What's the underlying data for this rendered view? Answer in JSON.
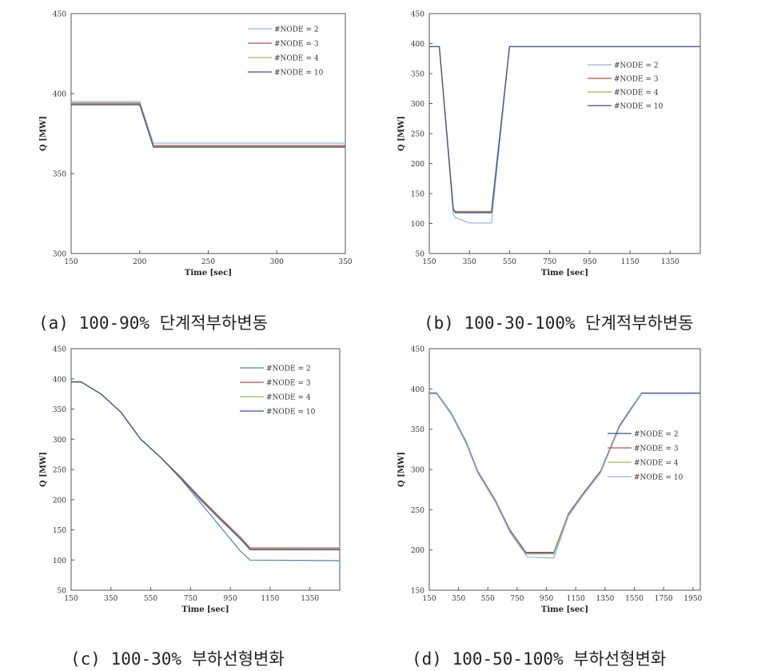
{
  "chart_data": [
    {
      "id": "a",
      "type": "line",
      "caption": "(a) 100-90% 단계적부하변동",
      "xlabel": "Time [sec]",
      "ylabel": "Q [MW]",
      "xlim": [
        150,
        350
      ],
      "ylim": [
        300,
        450
      ],
      "xticks": [
        "150",
        "200",
        "250",
        "300",
        "350"
      ],
      "yticks": [
        "300",
        "350",
        "400",
        "450"
      ],
      "legend_position": "top-right",
      "series": [
        {
          "name": "#NODE = 2",
          "color": "#8fb4e3",
          "x": [
            150,
            200,
            210,
            350
          ],
          "y": [
            395,
            395,
            369,
            369
          ]
        },
        {
          "name": "#NODE = 3",
          "color": "#c0504d",
          "x": [
            150,
            200,
            210,
            350
          ],
          "y": [
            394,
            394,
            367.5,
            367.5
          ]
        },
        {
          "name": "#NODE = 4",
          "color": "#9bbb59",
          "x": [
            150,
            200,
            210,
            350
          ],
          "y": [
            393.5,
            393.5,
            367,
            367
          ]
        },
        {
          "name": "#NODE = 10",
          "color": "#3d4f8f",
          "x": [
            150,
            200,
            210,
            350
          ],
          "y": [
            393,
            393,
            366.5,
            366.5
          ]
        }
      ]
    },
    {
      "id": "b",
      "type": "line",
      "caption": "(b) 100-30-100% 단계적부하변동",
      "xlabel": "Time [sec]",
      "ylabel": "Q [MW]",
      "xlim": [
        150,
        1500
      ],
      "ylim": [
        50,
        450
      ],
      "xticks": [
        "150",
        "350",
        "550",
        "750",
        "950",
        "1150",
        "1350"
      ],
      "yticks": [
        "50",
        "100",
        "150",
        "200",
        "250",
        "300",
        "350",
        "400",
        "450"
      ],
      "legend_position": "right",
      "series": [
        {
          "name": "#NODE = 2",
          "color": "#8fb4e3",
          "x": [
            150,
            200,
            270,
            280,
            350,
            460,
            550,
            1500
          ],
          "y": [
            395,
            395,
            115,
            110,
            101,
            101,
            395,
            395
          ]
        },
        {
          "name": "#NODE = 3",
          "color": "#c0504d",
          "x": [
            150,
            200,
            270,
            280,
            460,
            550,
            1500
          ],
          "y": [
            395,
            395,
            125,
            120,
            120,
            395,
            395
          ]
        },
        {
          "name": "#NODE = 4",
          "color": "#9bbb59",
          "x": [
            150,
            200,
            270,
            280,
            460,
            550,
            1500
          ],
          "y": [
            395,
            395,
            124,
            119,
            119,
            395,
            395
          ]
        },
        {
          "name": "#NODE = 10",
          "color": "#3d4f8f",
          "x": [
            150,
            200,
            270,
            280,
            460,
            550,
            1500
          ],
          "y": [
            395,
            395,
            123,
            118,
            118,
            395,
            395
          ]
        }
      ]
    },
    {
      "id": "c",
      "type": "line",
      "caption": "(c) 100-30% 부하선형변화",
      "xlabel": "Time [sec]",
      "ylabel": "Q [MW]",
      "xlim": [
        150,
        1500
      ],
      "ylim": [
        50,
        450
      ],
      "xticks": [
        "150",
        "350",
        "550",
        "750",
        "950",
        "1150",
        "1350"
      ],
      "yticks": [
        "50",
        "100",
        "150",
        "200",
        "250",
        "300",
        "350",
        "400",
        "450"
      ],
      "legend_position": "top-right",
      "series": [
        {
          "name": "#NODE = 2",
          "color": "#4f81bd",
          "x": [
            150,
            200,
            300,
            400,
            500,
            600,
            700,
            800,
            900,
            1000,
            1050,
            1500
          ],
          "y": [
            395,
            395,
            375,
            345,
            300,
            270,
            235,
            195,
            155,
            115,
            100,
            99
          ]
        },
        {
          "name": "#NODE = 3",
          "color": "#c0504d",
          "x": [
            150,
            200,
            300,
            400,
            500,
            600,
            700,
            800,
            900,
            1000,
            1050,
            1500
          ],
          "y": [
            395,
            395,
            375,
            345,
            300,
            270,
            238,
            203,
            170,
            138,
            120,
            120
          ]
        },
        {
          "name": "#NODE = 4",
          "color": "#9bbb59",
          "x": [
            150,
            200,
            300,
            400,
            500,
            600,
            700,
            800,
            900,
            1000,
            1050,
            1500
          ],
          "y": [
            395,
            395,
            375,
            345,
            300,
            270,
            237,
            201,
            168,
            136,
            118,
            118
          ]
        },
        {
          "name": "#NODE = 10",
          "color": "#3d4f8f",
          "x": [
            150,
            200,
            300,
            400,
            500,
            600,
            700,
            800,
            900,
            1000,
            1050,
            1500
          ],
          "y": [
            395,
            395,
            375,
            345,
            300,
            270,
            236,
            200,
            167,
            135,
            117,
            117
          ]
        }
      ]
    },
    {
      "id": "d",
      "type": "line",
      "caption": "(d) 100-50-100% 부하선형변화",
      "xlabel": "Time [sec]",
      "ylabel": "Q [MW]",
      "xlim": [
        150,
        2000
      ],
      "ylim": [
        150,
        450
      ],
      "xticks": [
        "150",
        "350",
        "550",
        "750",
        "950",
        "1150",
        "1350",
        "1550",
        "1750",
        "1950"
      ],
      "yticks": [
        "150",
        "200",
        "250",
        "300",
        "350",
        "400",
        "450"
      ],
      "legend_position": "right",
      "series": [
        {
          "name": "#NODE = 2",
          "color": "#3d4f8f",
          "x": [
            150,
            200,
            300,
            400,
            480,
            600,
            700,
            810,
            1000,
            1100,
            1200,
            1320,
            1450,
            1600,
            2000
          ],
          "y": [
            395,
            395,
            370,
            335,
            298,
            262,
            225,
            197,
            197,
            245,
            270,
            298,
            355,
            395,
            395
          ]
        },
        {
          "name": "#NODE = 3",
          "color": "#c0504d",
          "x": [
            150,
            200,
            300,
            400,
            480,
            600,
            700,
            810,
            1000,
            1100,
            1200,
            1320,
            1450,
            1600,
            2000
          ],
          "y": [
            394,
            394,
            369,
            334,
            297,
            261,
            224,
            196,
            196,
            244,
            269,
            297,
            354,
            394,
            394
          ]
        },
        {
          "name": "#NODE = 4",
          "color": "#9bbb59",
          "x": [
            150,
            200,
            300,
            400,
            480,
            600,
            700,
            810,
            1000,
            1100,
            1200,
            1320,
            1450,
            1600,
            2000
          ],
          "y": [
            394,
            394,
            368,
            333,
            296,
            260,
            223,
            195,
            195,
            243,
            268,
            296,
            353,
            394,
            394
          ]
        },
        {
          "name": "#NODE = 10",
          "color": "#8fb4e3",
          "x": [
            150,
            200,
            300,
            400,
            480,
            600,
            700,
            820,
            1000,
            1100,
            1200,
            1320,
            1450,
            1600,
            2000
          ],
          "y": [
            394,
            394,
            369,
            333,
            296,
            260,
            222,
            191,
            190,
            242,
            268,
            296,
            353,
            394,
            394
          ]
        }
      ]
    }
  ]
}
